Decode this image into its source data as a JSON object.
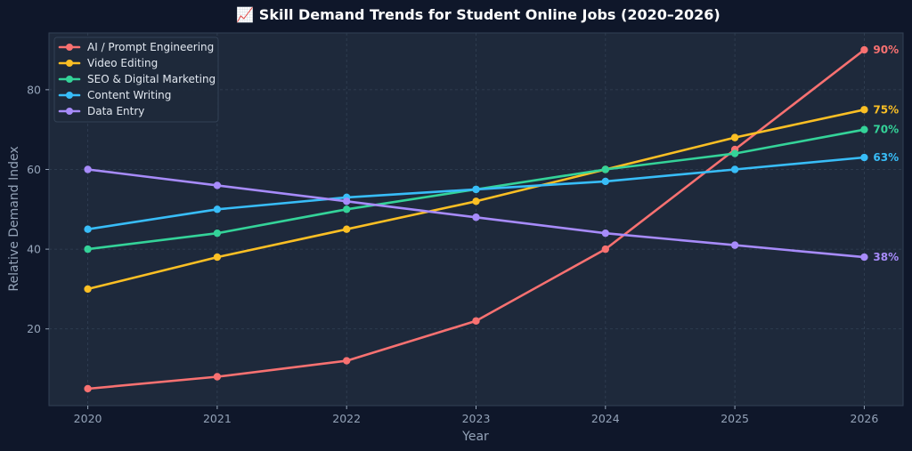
{
  "chart_data": {
    "type": "line",
    "title": "📈 Skill Demand Trends for Student Online Jobs (2020–2026)",
    "xlabel": "Year",
    "ylabel": "Relative Demand Index",
    "x": [
      2020,
      2021,
      2022,
      2023,
      2024,
      2025,
      2026
    ],
    "x_tick_labels": [
      "2020",
      "2021",
      "2022",
      "2023",
      "2024",
      "2025",
      "2026"
    ],
    "xlim": [
      2019.7,
      2026.3
    ],
    "ylim": [
      0.75,
      94.25
    ],
    "y_ticks": [
      20,
      40,
      60,
      80
    ],
    "y_tick_labels": [
      "20",
      "40",
      "60",
      "80"
    ],
    "grid": true,
    "legend_position": "top-left",
    "series": [
      {
        "name": "AI / Prompt Engineering",
        "color": "#f87171",
        "values": [
          5,
          8,
          12,
          22,
          40,
          65,
          90
        ],
        "end_label": "90%"
      },
      {
        "name": "Video Editing",
        "color": "#fbbf24",
        "values": [
          30,
          38,
          45,
          52,
          60,
          68,
          75
        ],
        "end_label": "75%"
      },
      {
        "name": "SEO & Digital Marketing",
        "color": "#34d399",
        "values": [
          40,
          44,
          50,
          55,
          60,
          64,
          70
        ],
        "end_label": "70%"
      },
      {
        "name": "Content Writing",
        "color": "#38bdf8",
        "values": [
          45,
          50,
          53,
          55,
          57,
          60,
          63
        ],
        "end_label": "63%"
      },
      {
        "name": "Data Entry",
        "color": "#a78bfa",
        "values": [
          60,
          56,
          52,
          48,
          44,
          41,
          38
        ],
        "end_label": "38%"
      }
    ],
    "colors": {
      "background": "#0f172a",
      "plot_background": "#1e293b",
      "text": "#ffffff",
      "muted_text": "#94a3b8",
      "grid": "#334155"
    }
  }
}
